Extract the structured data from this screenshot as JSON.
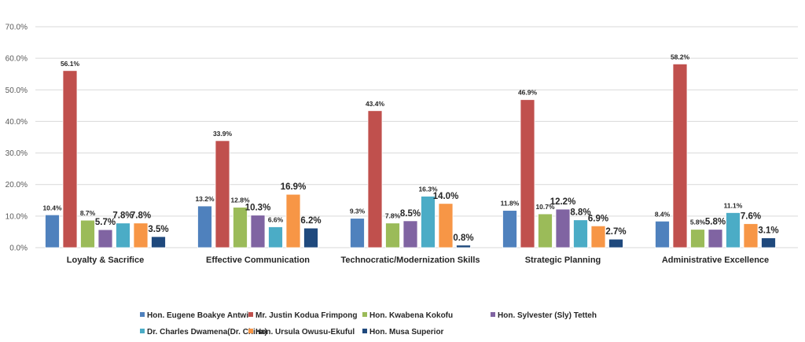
{
  "chart_data": {
    "type": "bar",
    "title": "",
    "xlabel": "",
    "ylabel": "",
    "ylim": [
      0,
      70
    ],
    "y_ticks": [
      "0.0%",
      "10.0%",
      "20.0%",
      "30.0%",
      "40.0%",
      "50.0%",
      "60.0%",
      "70.0%"
    ],
    "y_tick_values": [
      0,
      10,
      20,
      30,
      40,
      50,
      60,
      70
    ],
    "grid": true,
    "legend_position": "bottom",
    "value_format": "percent",
    "categories": [
      "Loyalty & Sacrifice",
      "Effective Communication",
      "Technocratic/Modernization Skills",
      "Strategic Planning",
      "Administrative Excellence"
    ],
    "series": [
      {
        "name": "Hon. Eugene Boakye Antwi",
        "color": "#4f81bd",
        "values": [
          10.4,
          13.2,
          9.3,
          11.8,
          8.4
        ]
      },
      {
        "name": "Mr. Justin Kodua Frimpong",
        "color": "#c0504d",
        "values": [
          56.1,
          33.9,
          43.4,
          46.9,
          58.2
        ]
      },
      {
        "name": "Hon. Kwabena Kokofu",
        "color": "#9bbb59",
        "values": [
          8.7,
          12.8,
          7.8,
          10.7,
          5.8
        ]
      },
      {
        "name": "Hon. Sylvester (Sly) Tetteh",
        "color": "#8064a2",
        "values": [
          5.7,
          10.3,
          8.5,
          12.2,
          5.8
        ]
      },
      {
        "name": "Dr. Charles Dwamena(Dr. China)",
        "color": "#4bacc6",
        "values": [
          7.8,
          6.6,
          16.3,
          8.8,
          11.1
        ]
      },
      {
        "name": "Hon. Ursula Owusu-Ekuful",
        "color": "#f79646",
        "values": [
          7.8,
          16.9,
          14.0,
          6.9,
          7.6
        ]
      },
      {
        "name": "Hon. Musa Superior",
        "color": "#1f497d",
        "values": [
          3.5,
          6.2,
          0.8,
          2.7,
          3.1
        ]
      }
    ],
    "data_labels": [
      [
        "10.4%",
        "13.2%",
        "9.3%",
        "11.8%",
        "8.4%"
      ],
      [
        "56.1%",
        "33.9%",
        "43.4%",
        "46.9%",
        "58.2%"
      ],
      [
        "8.7%",
        "12.8%",
        "7.8%",
        "10.7%",
        "5.8%"
      ],
      [
        "5.7%",
        "10.3%",
        "8.5%",
        "12.2%",
        "5.8%"
      ],
      [
        "7.8%",
        "6.6%",
        "16.3%",
        "8.8%",
        "11.1%"
      ],
      [
        "7.8%",
        "16.9%",
        "14.0%",
        "6.9%",
        "7.6%"
      ],
      [
        "3.5%",
        "6.2%",
        "0.8%",
        "2.7%",
        "3.1%"
      ]
    ]
  }
}
